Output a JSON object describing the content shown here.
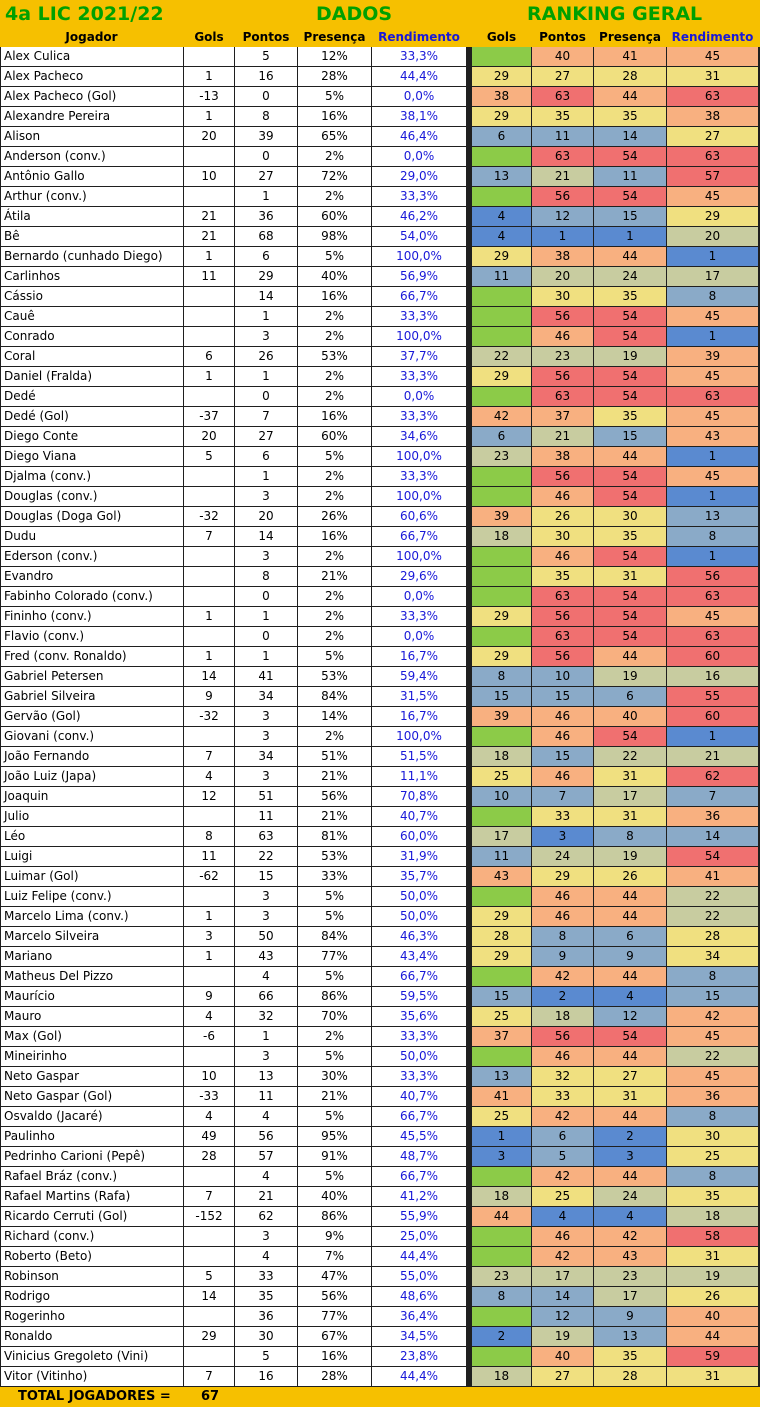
{
  "header": {
    "title_left": "4a LIC 2021/22",
    "title_dados": "DADOS",
    "title_ranking": "RANKING GERAL"
  },
  "columns": {
    "jogador": "Jogador",
    "gols": "Gols",
    "pontos": "Pontos",
    "presenca": "Presença",
    "rendimento": "Rendimento",
    "rk_gols": "Gols",
    "rk_pontos": "Pontos",
    "rk_presenca": "Presença",
    "rk_rendimento": "Rendimento"
  },
  "colors": {
    "header_bg": "#f6c000",
    "title_green": "#00a000",
    "rendimento_blue": "#1818d8",
    "rank_1": "#5a8ad0",
    "rank_mid_low": "#8aaac8",
    "rank_mid": "#c8cca0",
    "rank_mid_high": "#f0e080",
    "rank_high": "#f8b080",
    "rank_worst": "#f07070",
    "empty_gols": "#8ccb48"
  },
  "players": [
    {
      "name": "Alex Culica",
      "gols": "",
      "pontos": "5",
      "presenca": "12%",
      "rendimento": "33,3%",
      "rk": [
        "",
        "40",
        "41",
        "45"
      ]
    },
    {
      "name": "Alex Pacheco",
      "gols": "1",
      "pontos": "16",
      "presenca": "28%",
      "rendimento": "44,4%",
      "rk": [
        "29",
        "27",
        "28",
        "31"
      ]
    },
    {
      "name": "Alex Pacheco (Gol)",
      "gols": "-13",
      "pontos": "0",
      "presenca": "5%",
      "rendimento": "0,0%",
      "rk": [
        "38",
        "63",
        "44",
        "63"
      ]
    },
    {
      "name": "Alexandre Pereira",
      "gols": "1",
      "pontos": "8",
      "presenca": "16%",
      "rendimento": "38,1%",
      "rk": [
        "29",
        "35",
        "35",
        "38"
      ]
    },
    {
      "name": "Alison",
      "gols": "20",
      "pontos": "39",
      "presenca": "65%",
      "rendimento": "46,4%",
      "rk": [
        "6",
        "11",
        "14",
        "27"
      ]
    },
    {
      "name": "Anderson (conv.)",
      "gols": "",
      "pontos": "0",
      "presenca": "2%",
      "rendimento": "0,0%",
      "rk": [
        "",
        "63",
        "54",
        "63"
      ]
    },
    {
      "name": "Antônio Gallo",
      "gols": "10",
      "pontos": "27",
      "presenca": "72%",
      "rendimento": "29,0%",
      "rk": [
        "13",
        "21",
        "11",
        "57"
      ]
    },
    {
      "name": "Arthur (conv.)",
      "gols": "",
      "pontos": "1",
      "presenca": "2%",
      "rendimento": "33,3%",
      "rk": [
        "",
        "56",
        "54",
        "45"
      ]
    },
    {
      "name": "Átila",
      "gols": "21",
      "pontos": "36",
      "presenca": "60%",
      "rendimento": "46,2%",
      "rk": [
        "4",
        "12",
        "15",
        "29"
      ]
    },
    {
      "name": "Bê",
      "gols": "21",
      "pontos": "68",
      "presenca": "98%",
      "rendimento": "54,0%",
      "rk": [
        "4",
        "1",
        "1",
        "20"
      ]
    },
    {
      "name": "Bernardo (cunhado Diego)",
      "gols": "1",
      "pontos": "6",
      "presenca": "5%",
      "rendimento": "100,0%",
      "rk": [
        "29",
        "38",
        "44",
        "1"
      ]
    },
    {
      "name": "Carlinhos",
      "gols": "11",
      "pontos": "29",
      "presenca": "40%",
      "rendimento": "56,9%",
      "rk": [
        "11",
        "20",
        "24",
        "17"
      ]
    },
    {
      "name": "Cássio",
      "gols": "",
      "pontos": "14",
      "presenca": "16%",
      "rendimento": "66,7%",
      "rk": [
        "",
        "30",
        "35",
        "8"
      ]
    },
    {
      "name": "Cauê",
      "gols": "",
      "pontos": "1",
      "presenca": "2%",
      "rendimento": "33,3%",
      "rk": [
        "",
        "56",
        "54",
        "45"
      ]
    },
    {
      "name": "Conrado",
      "gols": "",
      "pontos": "3",
      "presenca": "2%",
      "rendimento": "100,0%",
      "rk": [
        "",
        "46",
        "54",
        "1"
      ]
    },
    {
      "name": "Coral",
      "gols": "6",
      "pontos": "26",
      "presenca": "53%",
      "rendimento": "37,7%",
      "rk": [
        "22",
        "23",
        "19",
        "39"
      ]
    },
    {
      "name": "Daniel (Fralda)",
      "gols": "1",
      "pontos": "1",
      "presenca": "2%",
      "rendimento": "33,3%",
      "rk": [
        "29",
        "56",
        "54",
        "45"
      ]
    },
    {
      "name": "Dedé",
      "gols": "",
      "pontos": "0",
      "presenca": "2%",
      "rendimento": "0,0%",
      "rk": [
        "",
        "63",
        "54",
        "63"
      ]
    },
    {
      "name": "Dedé (Gol)",
      "gols": "-37",
      "pontos": "7",
      "presenca": "16%",
      "rendimento": "33,3%",
      "rk": [
        "42",
        "37",
        "35",
        "45"
      ]
    },
    {
      "name": "Diego Conte",
      "gols": "20",
      "pontos": "27",
      "presenca": "60%",
      "rendimento": "34,6%",
      "rk": [
        "6",
        "21",
        "15",
        "43"
      ]
    },
    {
      "name": "Diego Viana",
      "gols": "5",
      "pontos": "6",
      "presenca": "5%",
      "rendimento": "100,0%",
      "rk": [
        "23",
        "38",
        "44",
        "1"
      ]
    },
    {
      "name": "Djalma (conv.)",
      "gols": "",
      "pontos": "1",
      "presenca": "2%",
      "rendimento": "33,3%",
      "rk": [
        "",
        "56",
        "54",
        "45"
      ]
    },
    {
      "name": "Douglas (conv.)",
      "gols": "",
      "pontos": "3",
      "presenca": "2%",
      "rendimento": "100,0%",
      "rk": [
        "",
        "46",
        "54",
        "1"
      ]
    },
    {
      "name": "Douglas (Doga Gol)",
      "gols": "-32",
      "pontos": "20",
      "presenca": "26%",
      "rendimento": "60,6%",
      "rk": [
        "39",
        "26",
        "30",
        "13"
      ]
    },
    {
      "name": "Dudu",
      "gols": "7",
      "pontos": "14",
      "presenca": "16%",
      "rendimento": "66,7%",
      "rk": [
        "18",
        "30",
        "35",
        "8"
      ]
    },
    {
      "name": "Ederson (conv.)",
      "gols": "",
      "pontos": "3",
      "presenca": "2%",
      "rendimento": "100,0%",
      "rk": [
        "",
        "46",
        "54",
        "1"
      ]
    },
    {
      "name": "Evandro",
      "gols": "",
      "pontos": "8",
      "presenca": "21%",
      "rendimento": "29,6%",
      "rk": [
        "",
        "35",
        "31",
        "56"
      ]
    },
    {
      "name": "Fabinho Colorado (conv.)",
      "gols": "",
      "pontos": "0",
      "presenca": "2%",
      "rendimento": "0,0%",
      "rk": [
        "",
        "63",
        "54",
        "63"
      ]
    },
    {
      "name": "Fininho (conv.)",
      "gols": "1",
      "pontos": "1",
      "presenca": "2%",
      "rendimento": "33,3%",
      "rk": [
        "29",
        "56",
        "54",
        "45"
      ]
    },
    {
      "name": "Flavio (conv.)",
      "gols": "",
      "pontos": "0",
      "presenca": "2%",
      "rendimento": "0,0%",
      "rk": [
        "",
        "63",
        "54",
        "63"
      ]
    },
    {
      "name": "Fred (conv. Ronaldo)",
      "gols": "1",
      "pontos": "1",
      "presenca": "5%",
      "rendimento": "16,7%",
      "rk": [
        "29",
        "56",
        "44",
        "60"
      ]
    },
    {
      "name": "Gabriel Petersen",
      "gols": "14",
      "pontos": "41",
      "presenca": "53%",
      "rendimento": "59,4%",
      "rk": [
        "8",
        "10",
        "19",
        "16"
      ]
    },
    {
      "name": "Gabriel Silveira",
      "gols": "9",
      "pontos": "34",
      "presenca": "84%",
      "rendimento": "31,5%",
      "rk": [
        "15",
        "15",
        "6",
        "55"
      ]
    },
    {
      "name": "Gervão (Gol)",
      "gols": "-32",
      "pontos": "3",
      "presenca": "14%",
      "rendimento": "16,7%",
      "rk": [
        "39",
        "46",
        "40",
        "60"
      ]
    },
    {
      "name": "Giovani (conv.)",
      "gols": "",
      "pontos": "3",
      "presenca": "2%",
      "rendimento": "100,0%",
      "rk": [
        "",
        "46",
        "54",
        "1"
      ]
    },
    {
      "name": "João Fernando",
      "gols": "7",
      "pontos": "34",
      "presenca": "51%",
      "rendimento": "51,5%",
      "rk": [
        "18",
        "15",
        "22",
        "21"
      ]
    },
    {
      "name": "João Luiz (Japa)",
      "gols": "4",
      "pontos": "3",
      "presenca": "21%",
      "rendimento": "11,1%",
      "rk": [
        "25",
        "46",
        "31",
        "62"
      ]
    },
    {
      "name": "Joaquin",
      "gols": "12",
      "pontos": "51",
      "presenca": "56%",
      "rendimento": "70,8%",
      "rk": [
        "10",
        "7",
        "17",
        "7"
      ]
    },
    {
      "name": "Julio",
      "gols": "",
      "pontos": "11",
      "presenca": "21%",
      "rendimento": "40,7%",
      "rk": [
        "",
        "33",
        "31",
        "36"
      ]
    },
    {
      "name": "Léo",
      "gols": "8",
      "pontos": "63",
      "presenca": "81%",
      "rendimento": "60,0%",
      "rk": [
        "17",
        "3",
        "8",
        "14"
      ]
    },
    {
      "name": "Luigi",
      "gols": "11",
      "pontos": "22",
      "presenca": "53%",
      "rendimento": "31,9%",
      "rk": [
        "11",
        "24",
        "19",
        "54"
      ]
    },
    {
      "name": "Luimar (Gol)",
      "gols": "-62",
      "pontos": "15",
      "presenca": "33%",
      "rendimento": "35,7%",
      "rk": [
        "43",
        "29",
        "26",
        "41"
      ]
    },
    {
      "name": "Luiz Felipe (conv.)",
      "gols": "",
      "pontos": "3",
      "presenca": "5%",
      "rendimento": "50,0%",
      "rk": [
        "",
        "46",
        "44",
        "22"
      ]
    },
    {
      "name": "Marcelo Lima (conv.)",
      "gols": "1",
      "pontos": "3",
      "presenca": "5%",
      "rendimento": "50,0%",
      "rk": [
        "29",
        "46",
        "44",
        "22"
      ]
    },
    {
      "name": "Marcelo Silveira",
      "gols": "3",
      "pontos": "50",
      "presenca": "84%",
      "rendimento": "46,3%",
      "rk": [
        "28",
        "8",
        "6",
        "28"
      ]
    },
    {
      "name": "Mariano",
      "gols": "1",
      "pontos": "43",
      "presenca": "77%",
      "rendimento": "43,4%",
      "rk": [
        "29",
        "9",
        "9",
        "34"
      ]
    },
    {
      "name": "Matheus Del Pizzo",
      "gols": "",
      "pontos": "4",
      "presenca": "5%",
      "rendimento": "66,7%",
      "rk": [
        "",
        "42",
        "44",
        "8"
      ]
    },
    {
      "name": "Maurício",
      "gols": "9",
      "pontos": "66",
      "presenca": "86%",
      "rendimento": "59,5%",
      "rk": [
        "15",
        "2",
        "4",
        "15"
      ]
    },
    {
      "name": "Mauro",
      "gols": "4",
      "pontos": "32",
      "presenca": "70%",
      "rendimento": "35,6%",
      "rk": [
        "25",
        "18",
        "12",
        "42"
      ]
    },
    {
      "name": "Max (Gol)",
      "gols": "-6",
      "pontos": "1",
      "presenca": "2%",
      "rendimento": "33,3%",
      "rk": [
        "37",
        "56",
        "54",
        "45"
      ]
    },
    {
      "name": "Mineirinho",
      "gols": "",
      "pontos": "3",
      "presenca": "5%",
      "rendimento": "50,0%",
      "rk": [
        "",
        "46",
        "44",
        "22"
      ]
    },
    {
      "name": "Neto Gaspar",
      "gols": "10",
      "pontos": "13",
      "presenca": "30%",
      "rendimento": "33,3%",
      "rk": [
        "13",
        "32",
        "27",
        "45"
      ]
    },
    {
      "name": "Neto Gaspar (Gol)",
      "gols": "-33",
      "pontos": "11",
      "presenca": "21%",
      "rendimento": "40,7%",
      "rk": [
        "41",
        "33",
        "31",
        "36"
      ]
    },
    {
      "name": "Osvaldo (Jacaré)",
      "gols": "4",
      "pontos": "4",
      "presenca": "5%",
      "rendimento": "66,7%",
      "rk": [
        "25",
        "42",
        "44",
        "8"
      ]
    },
    {
      "name": "Paulinho",
      "gols": "49",
      "pontos": "56",
      "presenca": "95%",
      "rendimento": "45,5%",
      "rk": [
        "1",
        "6",
        "2",
        "30"
      ]
    },
    {
      "name": "Pedrinho Carioni (Pepê)",
      "gols": "28",
      "pontos": "57",
      "presenca": "91%",
      "rendimento": "48,7%",
      "rk": [
        "3",
        "5",
        "3",
        "25"
      ]
    },
    {
      "name": "Rafael Bráz (conv.)",
      "gols": "",
      "pontos": "4",
      "presenca": "5%",
      "rendimento": "66,7%",
      "rk": [
        "",
        "42",
        "44",
        "8"
      ]
    },
    {
      "name": "Rafael Martins (Rafa)",
      "gols": "7",
      "pontos": "21",
      "presenca": "40%",
      "rendimento": "41,2%",
      "rk": [
        "18",
        "25",
        "24",
        "35"
      ]
    },
    {
      "name": "Ricardo Cerruti (Gol)",
      "gols": "-152",
      "pontos": "62",
      "presenca": "86%",
      "rendimento": "55,9%",
      "rk": [
        "44",
        "4",
        "4",
        "18"
      ]
    },
    {
      "name": "Richard (conv.)",
      "gols": "",
      "pontos": "3",
      "presenca": "9%",
      "rendimento": "25,0%",
      "rk": [
        "",
        "46",
        "42",
        "58"
      ]
    },
    {
      "name": "Roberto (Beto)",
      "gols": "",
      "pontos": "4",
      "presenca": "7%",
      "rendimento": "44,4%",
      "rk": [
        "",
        "42",
        "43",
        "31"
      ]
    },
    {
      "name": "Robinson",
      "gols": "5",
      "pontos": "33",
      "presenca": "47%",
      "rendimento": "55,0%",
      "rk": [
        "23",
        "17",
        "23",
        "19"
      ]
    },
    {
      "name": "Rodrigo",
      "gols": "14",
      "pontos": "35",
      "presenca": "56%",
      "rendimento": "48,6%",
      "rk": [
        "8",
        "14",
        "17",
        "26"
      ]
    },
    {
      "name": "Rogerinho",
      "gols": "",
      "pontos": "36",
      "presenca": "77%",
      "rendimento": "36,4%",
      "rk": [
        "",
        "12",
        "9",
        "40"
      ]
    },
    {
      "name": "Ronaldo",
      "gols": "29",
      "pontos": "30",
      "presenca": "67%",
      "rendimento": "34,5%",
      "rk": [
        "2",
        "19",
        "13",
        "44"
      ]
    },
    {
      "name": "Vinicius Gregoleto (Vini)",
      "gols": "",
      "pontos": "5",
      "presenca": "16%",
      "rendimento": "23,8%",
      "rk": [
        "",
        "40",
        "35",
        "59"
      ]
    },
    {
      "name": "Vitor (Vitinho)",
      "gols": "7",
      "pontos": "16",
      "presenca": "28%",
      "rendimento": "44,4%",
      "rk": [
        "18",
        "27",
        "28",
        "31"
      ]
    }
  ],
  "footer": {
    "label": "TOTAL JOGADORES =",
    "count": "67"
  }
}
